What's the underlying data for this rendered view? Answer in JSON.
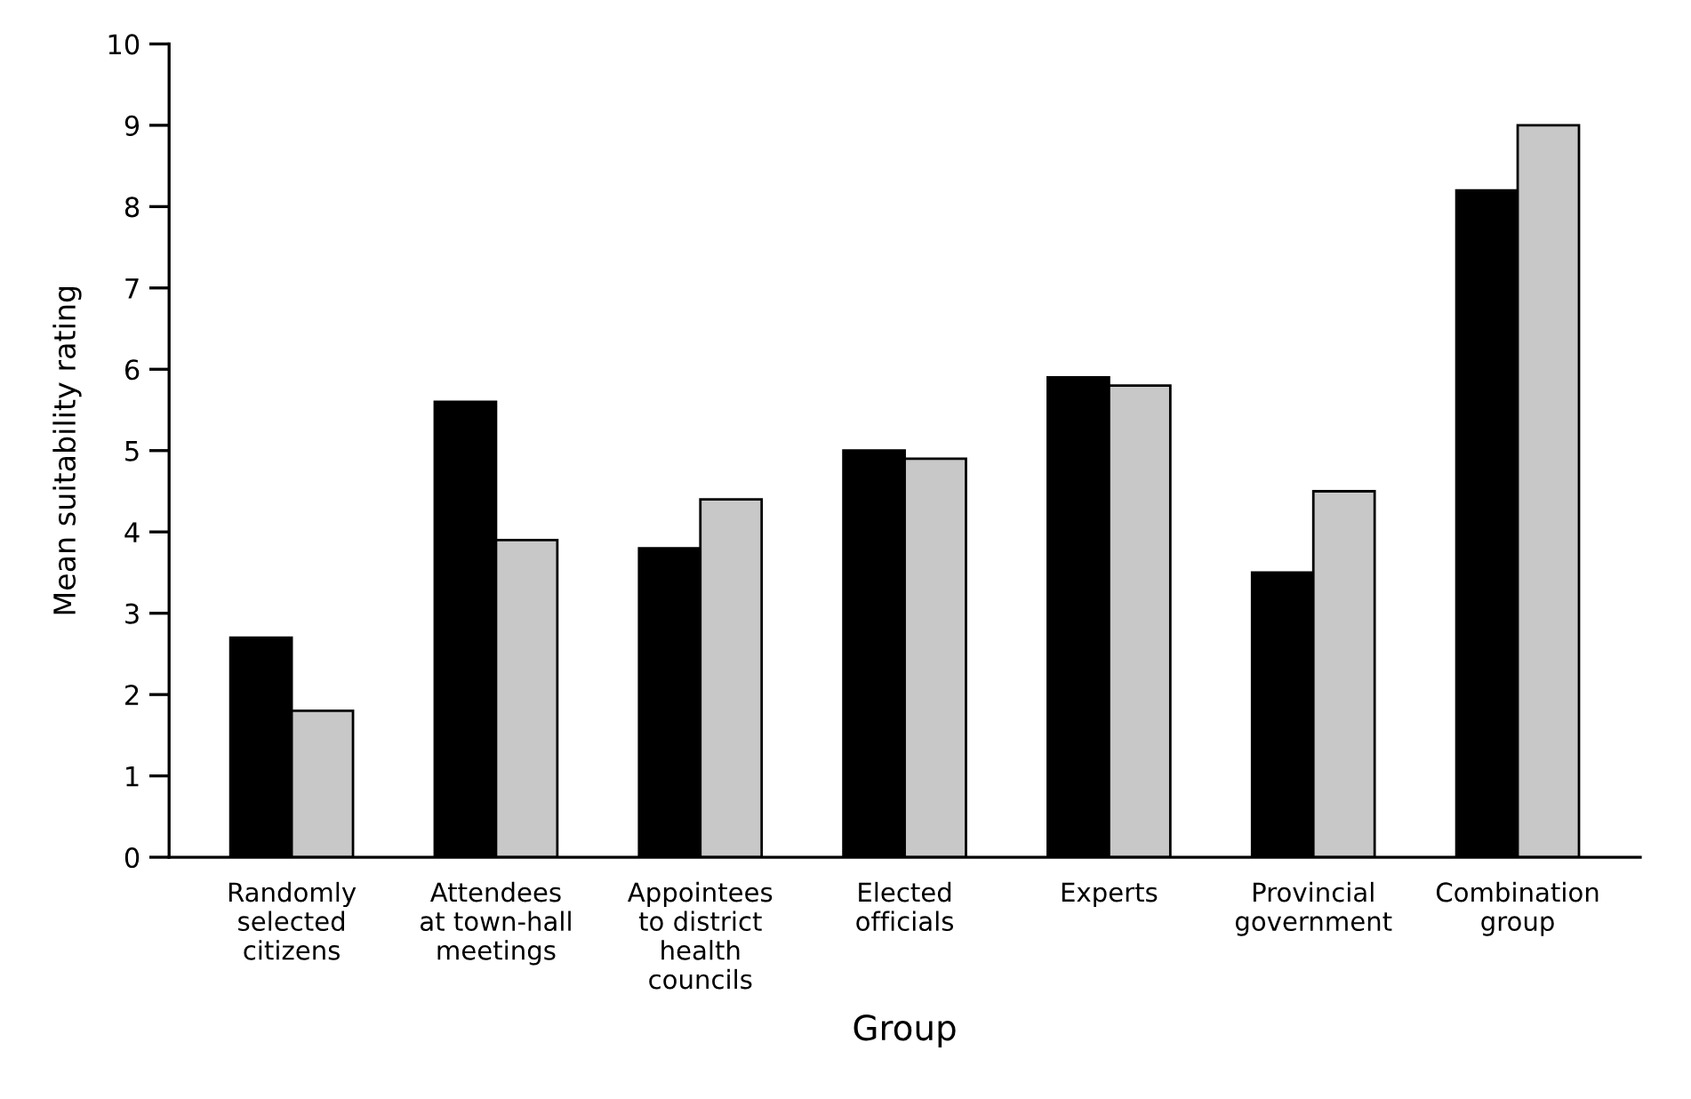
{
  "chart_data": {
    "type": "bar",
    "xlabel": "Group",
    "ylabel": "Mean suitability rating",
    "categories": [
      "Randomly\nselected\ncitizens",
      "Attendees\nat town-hall\nmeetings",
      "Appointees\nto district\nhealth\ncouncils",
      "Elected\nofficials",
      "Experts",
      "Provincial\ngovernment",
      "Combination\ngroup"
    ],
    "series": [
      {
        "color": "#000000",
        "values": [
          2.7,
          5.6,
          3.8,
          5.0,
          5.9,
          3.5,
          8.2
        ]
      },
      {
        "color": "#c8c8c8",
        "values": [
          1.8,
          3.9,
          4.4,
          4.9,
          5.8,
          4.5,
          9.0
        ]
      }
    ],
    "ylim": [
      0,
      10
    ],
    "yticks": [
      0,
      1,
      2,
      3,
      4,
      5,
      6,
      7,
      8,
      9,
      10
    ],
    "grid": false
  }
}
